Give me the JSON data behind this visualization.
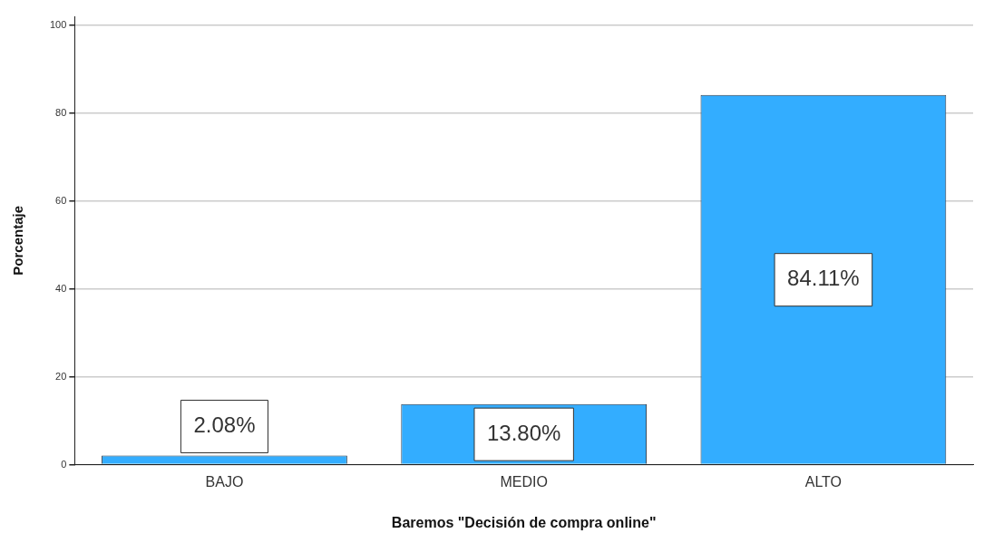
{
  "chart_data": {
    "type": "bar",
    "xlabel": "Baremos \"Decisión de compra online\"",
    "ylabel": "Porcentaje",
    "categories": [
      "BAJO",
      "MEDIO",
      "ALTO"
    ],
    "values": [
      2.08,
      13.8,
      84.11
    ],
    "value_labels": [
      "2.08%",
      "13.80%",
      "84.11%"
    ],
    "color": "#33adff",
    "ylim": [
      0,
      102
    ],
    "yticks": [
      0,
      20,
      40,
      60,
      80,
      100
    ],
    "grid": "y",
    "legend": false
  }
}
